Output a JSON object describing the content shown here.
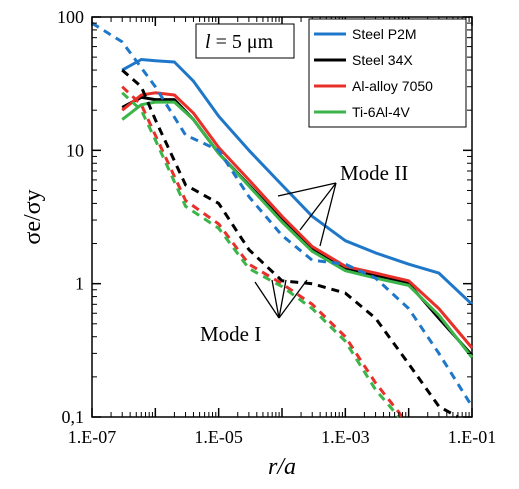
{
  "chart_data": {
    "type": "line",
    "xlabel": "r/a",
    "ylabel": "σe/σy",
    "xscale": "log",
    "yscale": "log",
    "xlim": [
      1e-07,
      0.1
    ],
    "ylim": [
      0.1,
      100
    ],
    "x_tick_labels": [
      "1.E-07",
      "1.E-05",
      "1.E-03",
      "1.E-01"
    ],
    "x_tick_values": [
      1e-07,
      1e-05,
      0.001,
      0.1
    ],
    "y_tick_labels": [
      "0,1",
      "1",
      "10",
      "100"
    ],
    "y_tick_values": [
      0.1,
      1,
      10,
      100
    ],
    "grid": false,
    "legend_position": "top-right",
    "inset_label": {
      "var": "l",
      "text": " = 5 μm"
    },
    "annotations": [
      {
        "text": "Mode II",
        "target_mode": "II"
      },
      {
        "text": "Mode I",
        "target_mode": "I"
      }
    ],
    "series": [
      {
        "name": "Steel P2M",
        "mode": "II",
        "style": "solid",
        "color": "#1f77c9",
        "x": [
          3e-07,
          6e-07,
          1e-06,
          2e-06,
          4e-06,
          1e-05,
          3e-05,
          0.0001,
          0.0003,
          0.001,
          0.003,
          0.01,
          0.03,
          0.1
        ],
        "y": [
          40,
          48,
          47,
          46,
          33,
          18,
          10,
          5.5,
          3.2,
          2.1,
          1.7,
          1.4,
          1.2,
          0.7
        ]
      },
      {
        "name": "Steel 34X",
        "mode": "II",
        "style": "solid",
        "color": "#000000",
        "x": [
          3e-07,
          6e-07,
          1e-06,
          2e-06,
          4e-06,
          1e-05,
          3e-05,
          0.0001,
          0.0003,
          0.001,
          0.003,
          0.01,
          0.03,
          0.1
        ],
        "y": [
          21,
          25,
          24,
          24,
          17,
          9.5,
          5.5,
          3.0,
          1.8,
          1.3,
          1.15,
          1.0,
          0.55,
          0.29
        ]
      },
      {
        "name": "Al-alloy 7050",
        "mode": "II",
        "style": "solid",
        "color": "#e8302a",
        "x": [
          3e-07,
          6e-07,
          1e-06,
          2e-06,
          4e-06,
          1e-05,
          3e-05,
          0.0001,
          0.0003,
          0.001,
          0.003,
          0.01,
          0.03,
          0.1
        ],
        "y": [
          20,
          26,
          27,
          26,
          19,
          10.5,
          6.0,
          3.2,
          1.9,
          1.35,
          1.2,
          1.05,
          0.65,
          0.33
        ]
      },
      {
        "name": "Ti-6Al-4V",
        "mode": "II",
        "style": "solid",
        "color": "#3bb54a",
        "x": [
          3e-07,
          6e-07,
          1e-06,
          2e-06,
          4e-06,
          1e-05,
          3e-05,
          0.0001,
          0.0003,
          0.001,
          0.003,
          0.01,
          0.03,
          0.1
        ],
        "y": [
          17,
          22,
          23,
          23,
          17,
          9.5,
          5.4,
          2.9,
          1.75,
          1.25,
          1.1,
          0.97,
          0.58,
          0.28
        ]
      },
      {
        "mode": "I",
        "style": "dashed",
        "color": "#1f77c9",
        "x": [
          1e-07,
          3e-07,
          1e-06,
          3e-06,
          1e-05,
          3e-05,
          0.0001,
          0.0003,
          0.001,
          0.003,
          0.01,
          0.03,
          0.1
        ],
        "y": [
          90,
          65,
          30,
          13,
          10,
          4.5,
          2.3,
          1.5,
          1.4,
          1.1,
          0.65,
          0.3,
          0.12
        ]
      },
      {
        "mode": "I",
        "style": "dashed",
        "color": "#000000",
        "x": [
          3e-07,
          6e-07,
          1e-06,
          3e-06,
          1e-05,
          3e-05,
          0.0001,
          0.0003,
          0.001,
          0.003,
          0.01,
          0.03,
          0.06
        ],
        "y": [
          40,
          30,
          17,
          5.5,
          4,
          1.8,
          1.05,
          1.0,
          0.85,
          0.55,
          0.25,
          0.12,
          0.1
        ]
      },
      {
        "mode": "I",
        "style": "dashed",
        "color": "#e8302a",
        "x": [
          3e-07,
          6e-07,
          1e-06,
          3e-06,
          1e-05,
          3e-05,
          0.0001,
          0.0003,
          0.001,
          0.003,
          0.008
        ],
        "y": [
          30,
          22,
          13,
          4.2,
          2.8,
          1.4,
          1.0,
          0.7,
          0.4,
          0.18,
          0.1
        ]
      },
      {
        "mode": "I",
        "style": "dashed",
        "color": "#3bb54a",
        "x": [
          3e-07,
          6e-07,
          1e-06,
          3e-06,
          1e-05,
          3e-05,
          0.0001,
          0.0003,
          0.001,
          0.003,
          0.007
        ],
        "y": [
          27,
          20,
          12,
          3.8,
          2.6,
          1.3,
          0.95,
          0.65,
          0.37,
          0.16,
          0.1
        ]
      }
    ]
  }
}
